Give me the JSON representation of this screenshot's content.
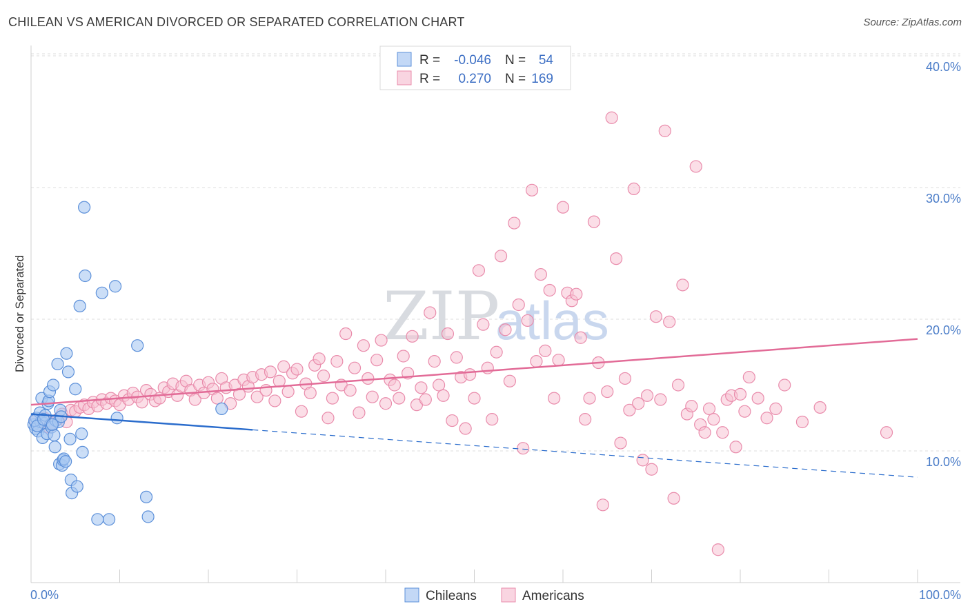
{
  "header": {
    "title": "CHILEAN VS AMERICAN DIVORCED OR SEPARATED CORRELATION CHART",
    "source": "Source: ZipAtlas.com"
  },
  "watermark": {
    "zip": "ZIP",
    "atlas": "atlas"
  },
  "legend_box": {
    "rows": [
      {
        "r_label": "R =",
        "r_value": "-0.046",
        "n_label": "N =",
        "n_value": "54",
        "color": "#9dbdf0"
      },
      {
        "r_label": "R =",
        "r_value": "0.270",
        "n_label": "N =",
        "n_value": "169",
        "color": "#f4a9c2"
      }
    ]
  },
  "bottom_legend": [
    {
      "label": "Chileans",
      "color": "#9dbdf0"
    },
    {
      "label": "Americans",
      "color": "#f4a9c2"
    }
  ],
  "colors": {
    "chileans_fill": "#a9c8f2",
    "chileans_stroke": "#5b8fd9",
    "chileans_line": "#2a6ccc",
    "americans_fill": "#f7c3d4",
    "americans_stroke": "#e98bab",
    "americans_line": "#e26b97",
    "grid": "#dcdcdc",
    "tick_label": "#4a7cc8"
  },
  "chart_data": {
    "type": "scatter",
    "title": "CHILEAN VS AMERICAN DIVORCED OR SEPARATED CORRELATION CHART",
    "xlabel": "",
    "ylabel": "Divorced or Separated",
    "xlim": [
      0,
      100
    ],
    "ylim": [
      0,
      43
    ],
    "x_tick_labels": [
      "0.0%",
      "100.0%"
    ],
    "y_ticks": [
      10,
      20,
      30,
      40
    ],
    "y_tick_labels": [
      "10.0%",
      "20.0%",
      "30.0%",
      "40.0%"
    ],
    "grid": true,
    "legend_position": "top-center",
    "series": [
      {
        "name": "Chileans",
        "r": -0.046,
        "n": 54,
        "trend": {
          "x0": 0,
          "y0": 12.8,
          "x1": 25,
          "y1": 11.6,
          "dashed_to_x": 100,
          "dashed_to_y": 8.0
        },
        "points": [
          [
            0.3,
            12.0
          ],
          [
            0.5,
            11.7
          ],
          [
            0.6,
            12.5
          ],
          [
            0.8,
            11.5
          ],
          [
            1.0,
            12.9
          ],
          [
            1.1,
            12.2
          ],
          [
            1.2,
            14.0
          ],
          [
            1.3,
            11.0
          ],
          [
            1.5,
            12.1
          ],
          [
            1.6,
            12.7
          ],
          [
            1.8,
            11.3
          ],
          [
            1.9,
            13.6
          ],
          [
            2.0,
            13.8
          ],
          [
            2.1,
            14.5
          ],
          [
            2.2,
            12.0
          ],
          [
            2.3,
            11.8
          ],
          [
            2.5,
            15.0
          ],
          [
            2.6,
            11.2
          ],
          [
            2.7,
            10.3
          ],
          [
            2.8,
            12.3
          ],
          [
            3.0,
            16.6
          ],
          [
            3.1,
            12.2
          ],
          [
            3.2,
            9.0
          ],
          [
            3.3,
            13.1
          ],
          [
            3.4,
            12.6
          ],
          [
            3.5,
            8.9
          ],
          [
            3.6,
            9.3
          ],
          [
            3.7,
            9.4
          ],
          [
            3.9,
            9.2
          ],
          [
            4.0,
            17.4
          ],
          [
            4.2,
            16.0
          ],
          [
            4.4,
            10.9
          ],
          [
            4.5,
            7.8
          ],
          [
            4.6,
            6.8
          ],
          [
            5.0,
            14.7
          ],
          [
            5.2,
            7.3
          ],
          [
            5.5,
            21.0
          ],
          [
            5.7,
            11.3
          ],
          [
            5.8,
            9.9
          ],
          [
            6.0,
            28.5
          ],
          [
            6.1,
            23.3
          ],
          [
            7.5,
            4.8
          ],
          [
            8.0,
            22.0
          ],
          [
            8.8,
            4.8
          ],
          [
            9.5,
            22.5
          ],
          [
            9.7,
            12.5
          ],
          [
            12.0,
            18.0
          ],
          [
            13.0,
            6.5
          ],
          [
            13.2,
            5.0
          ],
          [
            21.5,
            13.2
          ],
          [
            0.4,
            12.3
          ],
          [
            0.7,
            11.9
          ],
          [
            1.4,
            12.4
          ],
          [
            2.4,
            12.0
          ]
        ]
      },
      {
        "name": "Americans",
        "r": 0.27,
        "n": 169,
        "trend": {
          "x0": 0,
          "y0": 13.5,
          "x1": 100,
          "y1": 18.5
        },
        "points": [
          [
            0.5,
            12.3
          ],
          [
            1.0,
            12.0
          ],
          [
            1.5,
            12.5
          ],
          [
            2.0,
            11.8
          ],
          [
            2.5,
            12.1
          ],
          [
            3.0,
            12.4
          ],
          [
            3.5,
            12.8
          ],
          [
            4.0,
            12.2
          ],
          [
            4.5,
            13.1
          ],
          [
            5.0,
            13.0
          ],
          [
            5.5,
            13.3
          ],
          [
            6.0,
            13.5
          ],
          [
            6.5,
            13.2
          ],
          [
            7.0,
            13.7
          ],
          [
            7.5,
            13.4
          ],
          [
            8.0,
            13.9
          ],
          [
            8.5,
            13.6
          ],
          [
            9.0,
            14.0
          ],
          [
            9.5,
            13.8
          ],
          [
            10.0,
            13.5
          ],
          [
            10.5,
            14.2
          ],
          [
            11.0,
            13.9
          ],
          [
            11.5,
            14.4
          ],
          [
            12.0,
            14.1
          ],
          [
            12.5,
            13.7
          ],
          [
            13.0,
            14.6
          ],
          [
            13.5,
            14.3
          ],
          [
            14.0,
            13.8
          ],
          [
            14.5,
            14.0
          ],
          [
            15.0,
            14.8
          ],
          [
            15.5,
            14.5
          ],
          [
            16.0,
            15.1
          ],
          [
            16.5,
            14.2
          ],
          [
            17.0,
            14.9
          ],
          [
            17.5,
            15.3
          ],
          [
            18.0,
            14.6
          ],
          [
            18.5,
            13.9
          ],
          [
            19.0,
            15.0
          ],
          [
            19.5,
            14.4
          ],
          [
            20.0,
            15.2
          ],
          [
            20.5,
            14.7
          ],
          [
            21.0,
            14.0
          ],
          [
            21.5,
            15.5
          ],
          [
            22.0,
            14.8
          ],
          [
            22.5,
            13.6
          ],
          [
            23.0,
            15.0
          ],
          [
            23.5,
            14.3
          ],
          [
            24.0,
            15.4
          ],
          [
            24.5,
            14.9
          ],
          [
            25.0,
            15.6
          ],
          [
            25.5,
            14.1
          ],
          [
            26.0,
            15.8
          ],
          [
            26.5,
            14.6
          ],
          [
            27.0,
            16.0
          ],
          [
            27.5,
            13.8
          ],
          [
            28.0,
            15.3
          ],
          [
            28.5,
            16.4
          ],
          [
            29.0,
            14.5
          ],
          [
            29.5,
            15.9
          ],
          [
            30.0,
            16.2
          ],
          [
            30.5,
            13.0
          ],
          [
            31.0,
            15.1
          ],
          [
            31.5,
            14.4
          ],
          [
            32.0,
            16.5
          ],
          [
            32.5,
            17.0
          ],
          [
            33.0,
            15.7
          ],
          [
            33.5,
            12.5
          ],
          [
            34.0,
            14.0
          ],
          [
            34.5,
            16.8
          ],
          [
            35.0,
            15.0
          ],
          [
            35.5,
            18.9
          ],
          [
            36.0,
            14.6
          ],
          [
            36.5,
            16.3
          ],
          [
            37.0,
            12.9
          ],
          [
            37.5,
            18.0
          ],
          [
            38.0,
            15.5
          ],
          [
            38.5,
            14.1
          ],
          [
            39.0,
            16.9
          ],
          [
            39.5,
            18.4
          ],
          [
            40.0,
            13.6
          ],
          [
            40.5,
            15.4
          ],
          [
            41.0,
            15.0
          ],
          [
            41.5,
            14.0
          ],
          [
            42.0,
            17.2
          ],
          [
            42.5,
            15.9
          ],
          [
            43.0,
            18.7
          ],
          [
            43.5,
            13.5
          ],
          [
            44.0,
            14.8
          ],
          [
            44.5,
            13.9
          ],
          [
            45.0,
            20.5
          ],
          [
            45.5,
            16.8
          ],
          [
            46.0,
            15.0
          ],
          [
            46.5,
            14.2
          ],
          [
            47.0,
            18.9
          ],
          [
            47.5,
            12.3
          ],
          [
            48.0,
            17.1
          ],
          [
            48.5,
            15.6
          ],
          [
            49.0,
            11.7
          ],
          [
            49.5,
            15.8
          ],
          [
            50.0,
            14.0
          ],
          [
            50.5,
            23.7
          ],
          [
            51.0,
            19.6
          ],
          [
            51.5,
            16.3
          ],
          [
            52.0,
            12.4
          ],
          [
            52.5,
            17.5
          ],
          [
            53.0,
            24.8
          ],
          [
            53.5,
            19.2
          ],
          [
            54.0,
            15.3
          ],
          [
            54.5,
            27.3
          ],
          [
            55.0,
            21.1
          ],
          [
            55.5,
            10.2
          ],
          [
            56.0,
            19.9
          ],
          [
            56.5,
            29.8
          ],
          [
            57.0,
            16.8
          ],
          [
            57.5,
            23.4
          ],
          [
            58.0,
            17.6
          ],
          [
            58.5,
            22.2
          ],
          [
            59.0,
            14.0
          ],
          [
            59.5,
            16.9
          ],
          [
            60.0,
            28.5
          ],
          [
            60.5,
            22.0
          ],
          [
            61.0,
            21.4
          ],
          [
            61.5,
            21.9
          ],
          [
            62.0,
            18.6
          ],
          [
            62.5,
            12.4
          ],
          [
            63.0,
            14.0
          ],
          [
            63.5,
            27.4
          ],
          [
            64.0,
            16.7
          ],
          [
            64.5,
            5.9
          ],
          [
            65.0,
            14.5
          ],
          [
            65.5,
            35.3
          ],
          [
            66.0,
            24.6
          ],
          [
            66.5,
            10.6
          ],
          [
            67.0,
            15.5
          ],
          [
            67.5,
            13.1
          ],
          [
            68.0,
            29.9
          ],
          [
            68.5,
            13.6
          ],
          [
            69.0,
            9.3
          ],
          [
            69.5,
            14.2
          ],
          [
            70.0,
            8.6
          ],
          [
            70.5,
            20.2
          ],
          [
            71.0,
            13.9
          ],
          [
            71.5,
            34.3
          ],
          [
            72.0,
            19.8
          ],
          [
            72.5,
            6.4
          ],
          [
            73.0,
            15.0
          ],
          [
            73.5,
            22.6
          ],
          [
            74.0,
            12.8
          ],
          [
            74.5,
            13.4
          ],
          [
            75.0,
            31.6
          ],
          [
            75.5,
            12.0
          ],
          [
            76.0,
            11.4
          ],
          [
            76.5,
            13.2
          ],
          [
            77.0,
            12.4
          ],
          [
            77.5,
            2.5
          ],
          [
            78.0,
            11.4
          ],
          [
            78.5,
            13.9
          ],
          [
            79.0,
            14.2
          ],
          [
            79.5,
            10.3
          ],
          [
            80.0,
            14.3
          ],
          [
            80.5,
            13.0
          ],
          [
            81.0,
            15.6
          ],
          [
            82.0,
            14.0
          ],
          [
            83.0,
            12.5
          ],
          [
            84.0,
            13.2
          ],
          [
            85.0,
            15.0
          ],
          [
            87.0,
            12.2
          ],
          [
            89.0,
            13.3
          ],
          [
            96.5,
            11.4
          ]
        ]
      }
    ]
  }
}
